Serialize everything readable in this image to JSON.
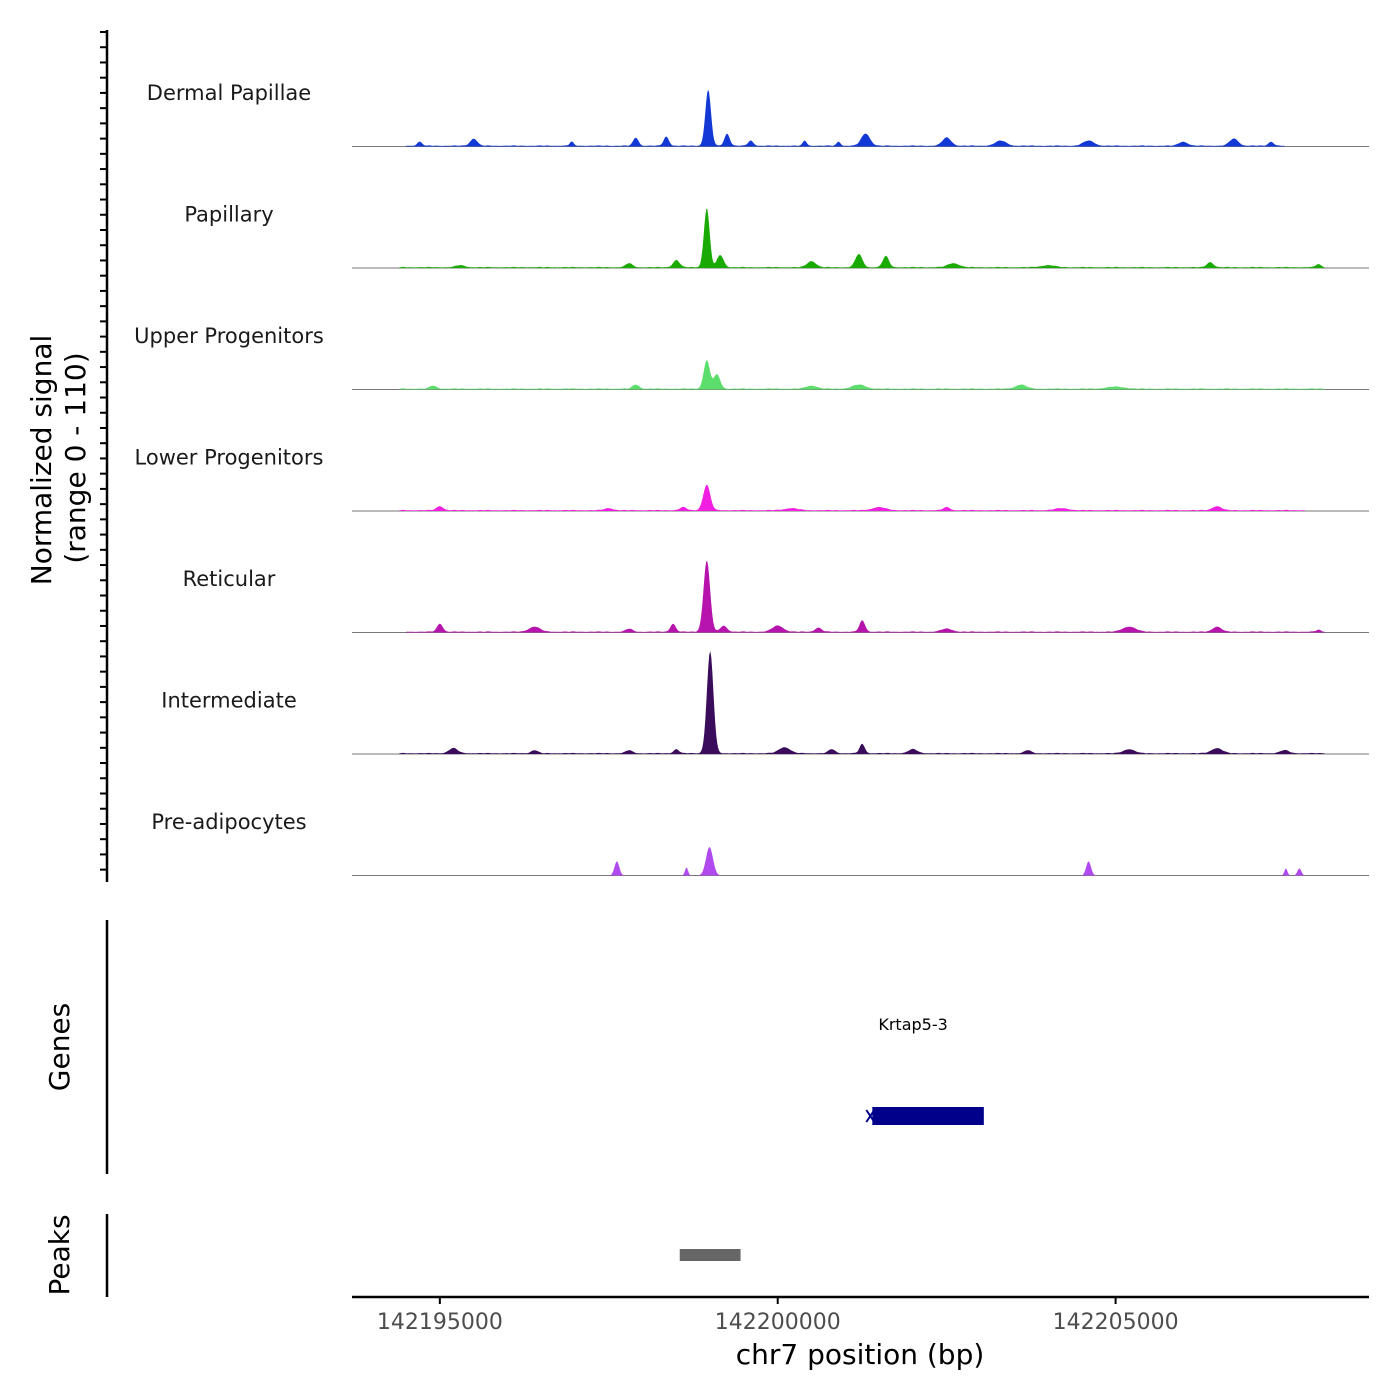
{
  "chart_data": {
    "type": "area",
    "title": "",
    "ylabel": "Normalized signal",
    "ylabel_range": "(range 0 - 110)",
    "xlabel": "chr7 position (bp)",
    "chromosome": "chr7",
    "xlim": [
      142193700,
      142208750
    ],
    "ylim": [
      0,
      110
    ],
    "x_ticks": [
      142195000,
      142200000,
      142205000
    ],
    "x_tick_labels": [
      "142195000",
      "142200000",
      "142205000"
    ],
    "series": [
      {
        "name": "Dermal Papillae",
        "color": "#1239d6",
        "range": [
          142194500,
          142207500
        ],
        "peaks": [
          {
            "x": 142194700,
            "y": 4,
            "w": 110
          },
          {
            "x": 142195500,
            "y": 7,
            "w": 160
          },
          {
            "x": 142196950,
            "y": 4,
            "w": 90
          },
          {
            "x": 142197900,
            "y": 8,
            "w": 120
          },
          {
            "x": 142198350,
            "y": 9,
            "w": 120
          },
          {
            "x": 142198970,
            "y": 55,
            "w": 130
          },
          {
            "x": 142199250,
            "y": 12,
            "w": 120
          },
          {
            "x": 142199600,
            "y": 5,
            "w": 120
          },
          {
            "x": 142200400,
            "y": 5,
            "w": 90
          },
          {
            "x": 142200900,
            "y": 4,
            "w": 90
          },
          {
            "x": 142201300,
            "y": 12,
            "w": 200
          },
          {
            "x": 142202500,
            "y": 8,
            "w": 200
          },
          {
            "x": 142203300,
            "y": 5,
            "w": 250
          },
          {
            "x": 142204600,
            "y": 5,
            "w": 250
          },
          {
            "x": 142206000,
            "y": 4,
            "w": 200
          },
          {
            "x": 142206750,
            "y": 7,
            "w": 200
          },
          {
            "x": 142207300,
            "y": 4,
            "w": 120
          }
        ]
      },
      {
        "name": "Papillary",
        "color": "#19ab04",
        "range": [
          142194400,
          142208100
        ],
        "peaks": [
          {
            "x": 142195300,
            "y": 2,
            "w": 200
          },
          {
            "x": 142197800,
            "y": 4,
            "w": 150
          },
          {
            "x": 142198950,
            "y": 58,
            "w": 130
          },
          {
            "x": 142199150,
            "y": 12,
            "w": 150
          },
          {
            "x": 142198500,
            "y": 7,
            "w": 150
          },
          {
            "x": 142200500,
            "y": 6,
            "w": 200
          },
          {
            "x": 142201200,
            "y": 13,
            "w": 160
          },
          {
            "x": 142201600,
            "y": 11,
            "w": 140
          },
          {
            "x": 142202600,
            "y": 4,
            "w": 250
          },
          {
            "x": 142204000,
            "y": 2,
            "w": 300
          },
          {
            "x": 142206400,
            "y": 5,
            "w": 150
          },
          {
            "x": 142208000,
            "y": 3,
            "w": 120
          }
        ]
      },
      {
        "name": "Upper Progenitors",
        "color": "#5bde6b",
        "range": [
          142194400,
          142208100
        ],
        "peaks": [
          {
            "x": 142194900,
            "y": 3,
            "w": 150
          },
          {
            "x": 142197900,
            "y": 4,
            "w": 150
          },
          {
            "x": 142198950,
            "y": 28,
            "w": 140
          },
          {
            "x": 142199100,
            "y": 14,
            "w": 150
          },
          {
            "x": 142200500,
            "y": 3,
            "w": 250
          },
          {
            "x": 142201200,
            "y": 4,
            "w": 300
          },
          {
            "x": 142203600,
            "y": 4,
            "w": 250
          },
          {
            "x": 142205000,
            "y": 2,
            "w": 400
          }
        ]
      },
      {
        "name": "Lower Progenitors",
        "color": "#f01ee0",
        "range": [
          142194400,
          142207800
        ],
        "peaks": [
          {
            "x": 142195000,
            "y": 4,
            "w": 150
          },
          {
            "x": 142197500,
            "y": 2,
            "w": 200
          },
          {
            "x": 142198950,
            "y": 25,
            "w": 160
          },
          {
            "x": 142198600,
            "y": 3,
            "w": 150
          },
          {
            "x": 142200200,
            "y": 2,
            "w": 300
          },
          {
            "x": 142201500,
            "y": 3,
            "w": 300
          },
          {
            "x": 142202500,
            "y": 3,
            "w": 150
          },
          {
            "x": 142204200,
            "y": 2,
            "w": 300
          },
          {
            "x": 142206500,
            "y": 4,
            "w": 200
          }
        ]
      },
      {
        "name": "Reticular",
        "color": "#b614ad",
        "range": [
          142194500,
          142208100
        ],
        "peaks": [
          {
            "x": 142195000,
            "y": 8,
            "w": 130
          },
          {
            "x": 142196400,
            "y": 5,
            "w": 250
          },
          {
            "x": 142197800,
            "y": 3,
            "w": 150
          },
          {
            "x": 142198450,
            "y": 8,
            "w": 120
          },
          {
            "x": 142198950,
            "y": 70,
            "w": 150
          },
          {
            "x": 142199200,
            "y": 6,
            "w": 150
          },
          {
            "x": 142200000,
            "y": 6,
            "w": 250
          },
          {
            "x": 142200600,
            "y": 4,
            "w": 150
          },
          {
            "x": 142201250,
            "y": 11,
            "w": 130
          },
          {
            "x": 142202500,
            "y": 3,
            "w": 250
          },
          {
            "x": 142205200,
            "y": 5,
            "w": 300
          },
          {
            "x": 142206500,
            "y": 5,
            "w": 200
          },
          {
            "x": 142208000,
            "y": 2,
            "w": 100
          }
        ]
      },
      {
        "name": "Intermediate",
        "color": "#3a0c5b",
        "range": [
          142194400,
          142208100
        ],
        "peaks": [
          {
            "x": 142195200,
            "y": 5,
            "w": 200
          },
          {
            "x": 142196400,
            "y": 3,
            "w": 150
          },
          {
            "x": 142197800,
            "y": 3,
            "w": 150
          },
          {
            "x": 142198500,
            "y": 4,
            "w": 120
          },
          {
            "x": 142199000,
            "y": 100,
            "w": 150
          },
          {
            "x": 142200100,
            "y": 6,
            "w": 250
          },
          {
            "x": 142200800,
            "y": 4,
            "w": 150
          },
          {
            "x": 142201250,
            "y": 9,
            "w": 120
          },
          {
            "x": 142202000,
            "y": 4,
            "w": 200
          },
          {
            "x": 142203700,
            "y": 3,
            "w": 150
          },
          {
            "x": 142205200,
            "y": 4,
            "w": 250
          },
          {
            "x": 142206500,
            "y": 5,
            "w": 250
          },
          {
            "x": 142207500,
            "y": 3,
            "w": 200
          }
        ]
      },
      {
        "name": "Pre-adipocytes",
        "color": "#b04aef",
        "range": null,
        "peaks": [
          {
            "x": 142197620,
            "y": 14,
            "w": 110
          },
          {
            "x": 142198650,
            "y": 8,
            "w": 70
          },
          {
            "x": 142198990,
            "y": 28,
            "w": 160
          },
          {
            "x": 142204600,
            "y": 14,
            "w": 110
          },
          {
            "x": 142207520,
            "y": 7,
            "w": 70
          },
          {
            "x": 142207720,
            "y": 7,
            "w": 90
          }
        ]
      }
    ],
    "genes": [
      {
        "name": "Krtap5-3",
        "start": 142201400,
        "end": 142203050,
        "strand": "-",
        "color": "#00008b"
      }
    ],
    "peaks": [
      {
        "start": 142198550,
        "end": 142199450,
        "color": "#666666"
      }
    ]
  },
  "panels": {
    "genes_label": "Genes",
    "peaks_label": "Peaks"
  }
}
